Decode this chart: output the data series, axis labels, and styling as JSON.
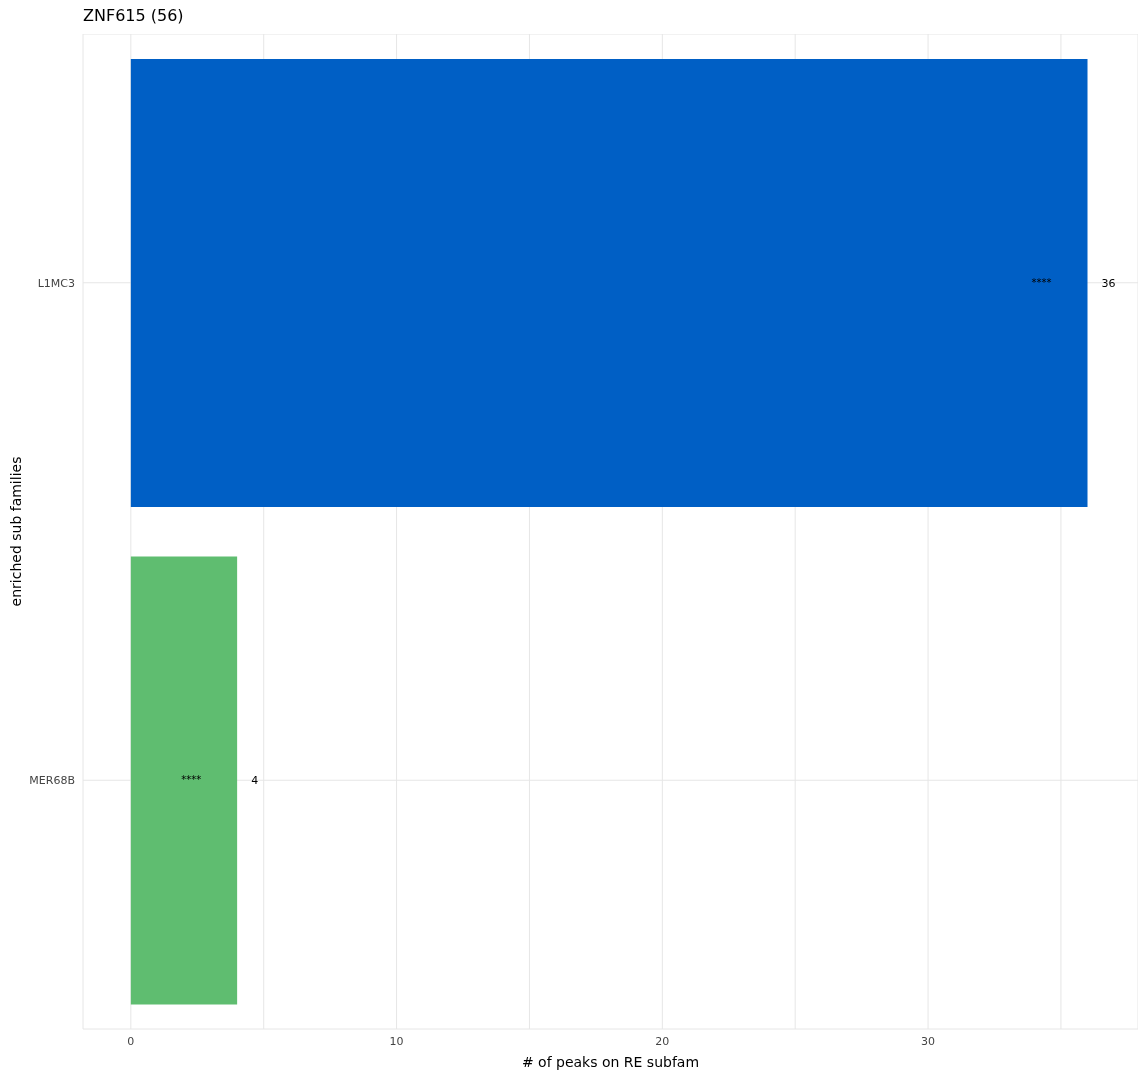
{
  "chart_data": {
    "type": "bar",
    "orientation": "horizontal",
    "title": "ZNF615 (56)",
    "xlabel": "# of peaks on RE subfam",
    "ylabel": "enriched sub families",
    "categories": [
      "L1MC3",
      "MER68B"
    ],
    "values": [
      36,
      4
    ],
    "colors": [
      "#005fc5",
      "#5fbd70"
    ],
    "xlim": [
      -1.8,
      37.9
    ],
    "xticks": [
      0,
      {
        "value": 5,
        "label": null
      },
      10,
      {
        "value": 15,
        "label": null
      },
      20,
      {
        "value": 25,
        "label": null
      },
      30,
      {
        "value": 35,
        "label": null
      }
    ],
    "grid": true,
    "data_labels": true,
    "annotations": [
      "****",
      "****"
    ]
  }
}
